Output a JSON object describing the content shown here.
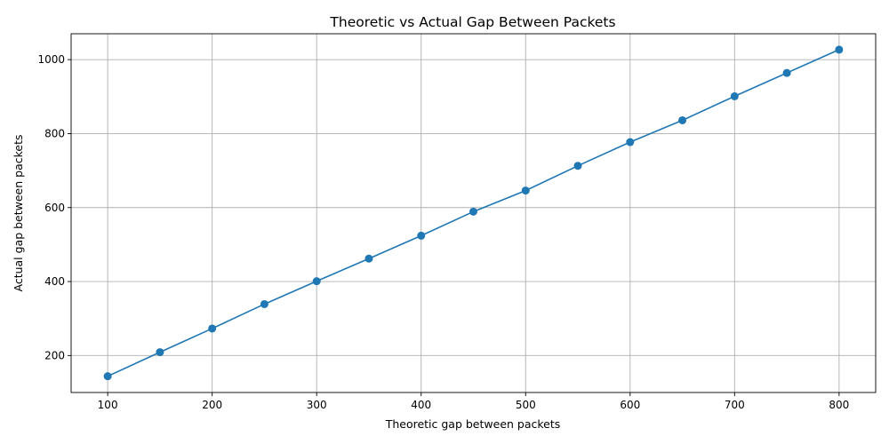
{
  "chart_data": {
    "type": "line",
    "title": "Theoretic vs Actual Gap Between Packets",
    "xlabel": "Theoretic gap between packets",
    "ylabel": "Actual gap between packets",
    "xlim": [
      65,
      835
    ],
    "ylim": [
      100,
      1070
    ],
    "xticks": [
      100,
      200,
      300,
      400,
      500,
      600,
      700,
      800
    ],
    "yticks": [
      200,
      400,
      600,
      800,
      1000
    ],
    "grid": true,
    "marker": "circle",
    "color": "#1f77b4",
    "series": [
      {
        "x": [
          100,
          150,
          200,
          250,
          300,
          350,
          400,
          450,
          500,
          550,
          600,
          650,
          700,
          750,
          800
        ],
        "y": [
          144,
          209,
          273,
          339,
          401,
          462,
          524,
          589,
          646,
          713,
          777,
          836,
          901,
          964,
          1027
        ]
      }
    ]
  }
}
